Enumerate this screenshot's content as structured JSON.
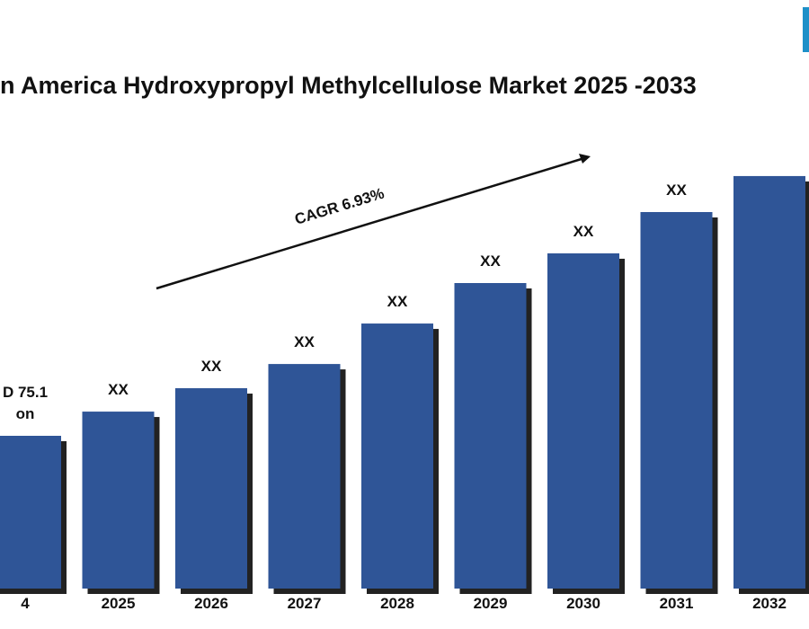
{
  "chart_data": {
    "type": "bar",
    "title": "n America Hydroxypropyl Methylcellulose Market 2025 -2033",
    "annotation": "CAGR 6.93%",
    "categories": [
      "4",
      "2025",
      "2026",
      "2027",
      "2028",
      "2029",
      "2030",
      "2031",
      "2032"
    ],
    "values": [
      75.1,
      87.0,
      98.5,
      110.4,
      130.3,
      150.2,
      164.8,
      185.1,
      202.8
    ],
    "value_labels": [
      "D 75.1\non",
      "XX",
      "XX",
      "XX",
      "XX",
      "XX",
      "XX",
      "XX",
      null
    ],
    "color": "#2f5597"
  }
}
